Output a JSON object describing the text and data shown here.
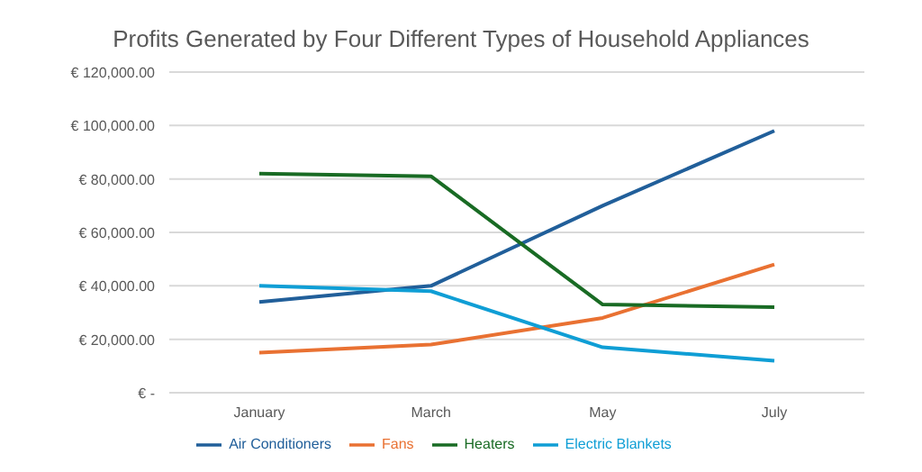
{
  "chart_data": {
    "type": "line",
    "title": "Profits Generated by Four Different Types of Household Appliances",
    "categories": [
      "January",
      "March",
      "May",
      "July"
    ],
    "series": [
      {
        "name": "Air Conditioners",
        "color": "#215f9a",
        "values": [
          34000,
          40000,
          70000,
          98000
        ]
      },
      {
        "name": "Fans",
        "color": "#e97132",
        "values": [
          15000,
          18000,
          28000,
          48000
        ]
      },
      {
        "name": "Heaters",
        "color": "#196b24",
        "values": [
          82000,
          81000,
          33000,
          32000
        ]
      },
      {
        "name": "Electric Blankets",
        "color": "#0f9ed5",
        "values": [
          40000,
          38000,
          17000,
          12000
        ]
      }
    ],
    "ylim": [
      0,
      120000
    ],
    "yticks": [
      {
        "value": 0,
        "label": "€ -"
      },
      {
        "value": 20000,
        "label": "€ 20,000.00"
      },
      {
        "value": 40000,
        "label": "€ 40,000.00"
      },
      {
        "value": 60000,
        "label": "€ 60,000.00"
      },
      {
        "value": 80000,
        "label": "€ 80,000.00"
      },
      {
        "value": 100000,
        "label": "€ 100,000.00"
      },
      {
        "value": 120000,
        "label": "€ 120,000.00"
      }
    ],
    "grid": "y",
    "legend": "bottom",
    "marker": "none",
    "line_style": "solid"
  }
}
